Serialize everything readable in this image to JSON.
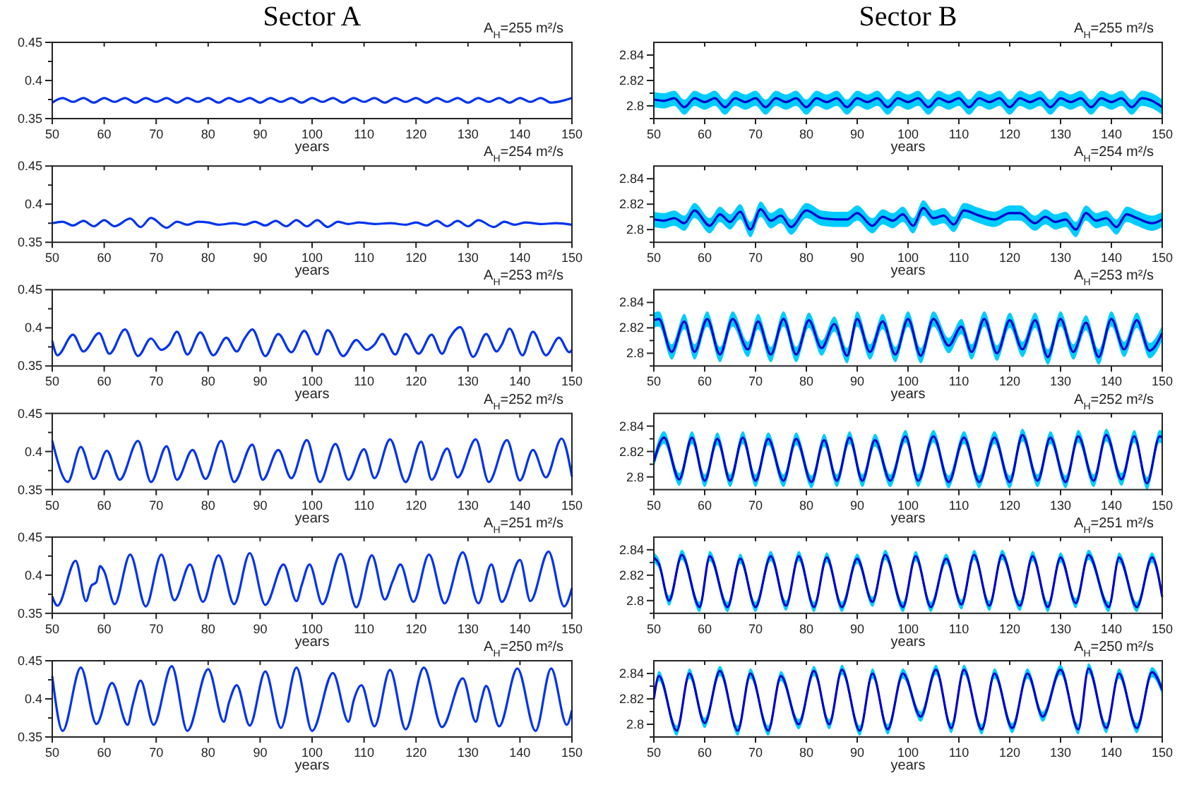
{
  "chart_data": [
    {
      "type": "line",
      "title": "Sector A",
      "xlabel": "years",
      "annotations": [
        "A$_{H}$=255 m²/s"
      ],
      "xlim": [
        50,
        150
      ],
      "xticks": [
        50,
        60,
        70,
        80,
        90,
        100,
        110,
        120,
        130,
        140,
        150
      ],
      "ylim": [
        0.35,
        0.45
      ],
      "yticks": [
        0.35,
        {
          "value": 0.375,
          "label": null
        },
        0.4,
        {
          "value": 0.425,
          "label": null
        },
        0.45
      ],
      "series": [
        {
          "color": "#0033ee",
          "x": [
            50,
            52,
            54,
            56,
            58,
            60,
            62,
            64,
            66,
            68,
            70,
            72,
            74,
            76,
            78,
            80,
            82,
            84,
            86,
            88,
            90,
            92,
            94,
            96,
            98,
            100,
            102,
            104,
            106,
            108,
            110,
            112,
            114,
            116,
            118,
            120,
            122,
            124,
            126,
            128,
            130,
            132,
            134,
            136,
            138,
            140,
            142,
            144,
            146,
            148,
            150
          ],
          "values": [
            0.371,
            0.377,
            0.372,
            0.377,
            0.371,
            0.377,
            0.372,
            0.377,
            0.371,
            0.377,
            0.372,
            0.377,
            0.371,
            0.377,
            0.372,
            0.377,
            0.371,
            0.377,
            0.372,
            0.377,
            0.371,
            0.377,
            0.372,
            0.377,
            0.371,
            0.377,
            0.372,
            0.377,
            0.371,
            0.377,
            0.372,
            0.377,
            0.371,
            0.377,
            0.372,
            0.377,
            0.371,
            0.377,
            0.372,
            0.377,
            0.371,
            0.377,
            0.372,
            0.377,
            0.371,
            0.377,
            0.372,
            0.377,
            0.371,
            0.373,
            0.377
          ]
        }
      ]
    },
    {
      "type": "line",
      "title": "Sector B",
      "xlabel": "years",
      "annotations": [
        "A$_{H}$=255 m²/s"
      ],
      "xlim": [
        50,
        150
      ],
      "xticks": [
        50,
        60,
        70,
        80,
        90,
        100,
        110,
        120,
        130,
        140,
        150
      ],
      "ylim": [
        2.79,
        2.85
      ],
      "yticks": [
        {
          "value": 2.79,
          "label": null
        },
        2.8,
        {
          "value": 2.81,
          "label": null
        },
        2.82,
        {
          "value": 2.83,
          "label": null
        },
        2.84
      ],
      "series": [
        {
          "color": "#0000cc",
          "x": [
            50,
            52,
            54,
            56,
            58,
            60,
            62,
            64,
            66,
            68,
            70,
            72,
            74,
            76,
            78,
            80,
            82,
            84,
            86,
            88,
            90,
            92,
            94,
            96,
            98,
            100,
            102,
            104,
            106,
            108,
            110,
            112,
            114,
            116,
            118,
            120,
            122,
            124,
            126,
            128,
            130,
            132,
            134,
            136,
            138,
            140,
            142,
            144,
            146,
            148,
            150
          ],
          "values": [
            2.805,
            2.804,
            2.806,
            2.799,
            2.806,
            2.803,
            2.806,
            2.799,
            2.806,
            2.803,
            2.806,
            2.799,
            2.806,
            2.803,
            2.806,
            2.799,
            2.806,
            2.803,
            2.806,
            2.799,
            2.806,
            2.803,
            2.806,
            2.799,
            2.806,
            2.803,
            2.806,
            2.799,
            2.806,
            2.803,
            2.806,
            2.799,
            2.806,
            2.803,
            2.806,
            2.799,
            2.806,
            2.803,
            2.806,
            2.799,
            2.806,
            2.803,
            2.806,
            2.799,
            2.806,
            2.803,
            2.806,
            2.799,
            2.806,
            2.804,
            2.799
          ],
          "lower": [
            2.799,
            2.798,
            2.8,
            2.793,
            2.8,
            2.797,
            2.8,
            2.793,
            2.8,
            2.797,
            2.8,
            2.793,
            2.8,
            2.797,
            2.8,
            2.793,
            2.8,
            2.797,
            2.8,
            2.793,
            2.8,
            2.797,
            2.8,
            2.793,
            2.8,
            2.797,
            2.8,
            2.793,
            2.8,
            2.797,
            2.8,
            2.793,
            2.8,
            2.797,
            2.8,
            2.793,
            2.8,
            2.797,
            2.8,
            2.793,
            2.8,
            2.797,
            2.8,
            2.793,
            2.8,
            2.797,
            2.8,
            2.793,
            2.8,
            2.798,
            2.793
          ],
          "upper": [
            2.811,
            2.81,
            2.812,
            2.805,
            2.812,
            2.809,
            2.812,
            2.805,
            2.812,
            2.809,
            2.812,
            2.805,
            2.812,
            2.809,
            2.812,
            2.805,
            2.812,
            2.809,
            2.812,
            2.805,
            2.812,
            2.809,
            2.812,
            2.805,
            2.812,
            2.809,
            2.812,
            2.805,
            2.812,
            2.809,
            2.812,
            2.805,
            2.812,
            2.809,
            2.812,
            2.805,
            2.812,
            2.809,
            2.812,
            2.805,
            2.812,
            2.809,
            2.812,
            2.805,
            2.812,
            2.809,
            2.812,
            2.805,
            2.812,
            2.81,
            2.805
          ]
        }
      ]
    },
    {
      "type": "line",
      "xlabel": "years",
      "annotations": [
        "A$_{H}$=254 m²/s"
      ],
      "xlim": [
        50,
        150
      ],
      "xticks": [
        50,
        60,
        70,
        80,
        90,
        100,
        110,
        120,
        130,
        140,
        150
      ],
      "ylim": [
        0.35,
        0.45
      ],
      "yticks": [
        0.35,
        {
          "value": 0.375,
          "label": null
        },
        0.4,
        {
          "value": 0.425,
          "label": null
        },
        0.45
      ],
      "series": [
        {
          "color": "#0033ee",
          "x": [
            50,
            52,
            54,
            56,
            58,
            60,
            62,
            65,
            67,
            69,
            72,
            74,
            76,
            78,
            80,
            82,
            85,
            87,
            89,
            91,
            93,
            95,
            97,
            99,
            101,
            103,
            105,
            107,
            109,
            112,
            115,
            118,
            120,
            122,
            124,
            126,
            128,
            130,
            132,
            135,
            137,
            139,
            141,
            144,
            147,
            150
          ],
          "values": [
            0.375,
            0.377,
            0.372,
            0.378,
            0.371,
            0.379,
            0.371,
            0.381,
            0.37,
            0.382,
            0.369,
            0.377,
            0.373,
            0.377,
            0.376,
            0.373,
            0.375,
            0.373,
            0.377,
            0.372,
            0.378,
            0.371,
            0.379,
            0.371,
            0.379,
            0.37,
            0.377,
            0.374,
            0.376,
            0.374,
            0.375,
            0.373,
            0.376,
            0.372,
            0.378,
            0.371,
            0.378,
            0.371,
            0.379,
            0.37,
            0.377,
            0.373,
            0.376,
            0.374,
            0.375,
            0.373
          ]
        }
      ]
    },
    {
      "type": "line",
      "xlabel": "years",
      "annotations": [
        "A$_{H}$=254 m²/s"
      ],
      "xlim": [
        50,
        150
      ],
      "xticks": [
        50,
        60,
        70,
        80,
        90,
        100,
        110,
        120,
        130,
        140,
        150
      ],
      "ylim": [
        2.79,
        2.85
      ],
      "yticks": [
        {
          "value": 2.79,
          "label": null
        },
        2.8,
        {
          "value": 2.81,
          "label": null
        },
        2.82,
        {
          "value": 2.83,
          "label": null
        },
        2.84
      ],
      "series": [
        {
          "color": "#0000cc",
          "x": [
            50,
            52,
            54,
            56,
            58,
            61,
            63,
            65,
            67,
            69,
            71,
            73,
            75,
            77,
            80,
            83,
            86,
            88,
            90,
            93,
            95,
            97,
            99,
            101,
            103,
            105,
            107,
            109,
            111,
            114,
            117,
            120,
            122,
            125,
            127,
            129,
            131,
            133,
            135,
            137,
            139,
            141,
            143,
            145,
            148,
            150
          ],
          "values": [
            2.808,
            2.807,
            2.809,
            2.805,
            2.815,
            2.803,
            2.812,
            2.806,
            2.814,
            2.8,
            2.816,
            2.807,
            2.811,
            2.802,
            2.815,
            2.809,
            2.808,
            2.808,
            2.813,
            2.803,
            2.81,
            2.807,
            2.812,
            2.803,
            2.817,
            2.809,
            2.811,
            2.804,
            2.815,
            2.811,
            2.808,
            2.813,
            2.813,
            2.805,
            2.81,
            2.806,
            2.808,
            2.8,
            2.813,
            2.807,
            2.809,
            2.802,
            2.812,
            2.809,
            2.805,
            2.808
          ],
          "lower": [
            2.802,
            2.801,
            2.803,
            2.799,
            2.809,
            2.797,
            2.806,
            2.8,
            2.808,
            2.794,
            2.81,
            2.801,
            2.805,
            2.796,
            2.809,
            2.803,
            2.802,
            2.802,
            2.807,
            2.797,
            2.804,
            2.801,
            2.806,
            2.797,
            2.811,
            2.803,
            2.805,
            2.798,
            2.809,
            2.805,
            2.802,
            2.807,
            2.807,
            2.799,
            2.804,
            2.8,
            2.802,
            2.794,
            2.807,
            2.801,
            2.803,
            2.796,
            2.806,
            2.803,
            2.799,
            2.802
          ],
          "upper": [
            2.814,
            2.813,
            2.815,
            2.811,
            2.821,
            2.809,
            2.818,
            2.812,
            2.82,
            2.806,
            2.822,
            2.813,
            2.817,
            2.808,
            2.821,
            2.815,
            2.814,
            2.814,
            2.819,
            2.809,
            2.816,
            2.813,
            2.818,
            2.809,
            2.823,
            2.815,
            2.817,
            2.81,
            2.821,
            2.817,
            2.814,
            2.819,
            2.819,
            2.811,
            2.816,
            2.812,
            2.814,
            2.806,
            2.819,
            2.813,
            2.815,
            2.808,
            2.818,
            2.815,
            2.811,
            2.814
          ]
        }
      ]
    },
    {
      "type": "line",
      "xlabel": "years",
      "annotations": [
        "A$_{H}$=253 m²/s"
      ],
      "xlim": [
        50,
        150
      ],
      "xticks": [
        50,
        60,
        70,
        80,
        90,
        100,
        110,
        120,
        130,
        140,
        150
      ],
      "ylim": [
        0.35,
        0.45
      ],
      "yticks": [
        0.35,
        {
          "value": 0.375,
          "label": null
        },
        0.4,
        {
          "value": 0.425,
          "label": null
        },
        0.45
      ],
      "series": [
        {
          "color": "#0033ee",
          "x": [
            50,
            51,
            54,
            56,
            59,
            61,
            64,
            66.5,
            69,
            71,
            72.5,
            74,
            76,
            78.5,
            81,
            83.5,
            85.5,
            87,
            88.5,
            91,
            93.5,
            96,
            98.5,
            101,
            103,
            106,
            108.5,
            110.5,
            112,
            113.5,
            116,
            118,
            120.5,
            123,
            125,
            126.5,
            128.5,
            131,
            133.5,
            135.5,
            136.5,
            138,
            140.5,
            142.5,
            145,
            147.5,
            149.5,
            150
          ],
          "values": [
            0.383,
            0.364,
            0.391,
            0.369,
            0.393,
            0.366,
            0.398,
            0.363,
            0.386,
            0.371,
            0.378,
            0.395,
            0.365,
            0.394,
            0.364,
            0.387,
            0.369,
            0.386,
            0.398,
            0.363,
            0.392,
            0.368,
            0.396,
            0.365,
            0.397,
            0.363,
            0.384,
            0.371,
            0.378,
            0.392,
            0.365,
            0.392,
            0.366,
            0.391,
            0.366,
            0.387,
            0.401,
            0.362,
            0.392,
            0.369,
            0.378,
            0.399,
            0.364,
            0.395,
            0.364,
            0.387,
            0.368,
            0.371
          ]
        }
      ]
    },
    {
      "type": "line",
      "xlabel": "years",
      "annotations": [
        "A$_{H}$=253 m²/s"
      ],
      "xlim": [
        50,
        150
      ],
      "xticks": [
        50,
        60,
        70,
        80,
        90,
        100,
        110,
        120,
        130,
        140,
        150
      ],
      "ylim": [
        2.79,
        2.85
      ],
      "yticks": [
        {
          "value": 2.79,
          "label": null
        },
        2.8,
        {
          "value": 2.81,
          "label": null
        },
        2.82,
        {
          "value": 2.83,
          "label": null
        },
        2.84
      ],
      "series": [
        {
          "color": "#0000cc",
          "x": [
            50,
            51,
            53.5,
            56,
            58,
            60.5,
            63,
            65.5,
            68.5,
            70.5,
            73,
            75.5,
            78,
            80.5,
            83,
            85.5,
            88,
            90,
            92.5,
            95,
            97.5,
            100,
            102.5,
            105,
            108,
            110.5,
            112.5,
            115,
            117.5,
            120,
            122.5,
            125,
            127.5,
            130,
            132.5,
            135,
            137.5,
            140,
            142.5,
            145,
            147.5,
            150
          ],
          "values": [
            2.826,
            2.827,
            2.801,
            2.825,
            2.801,
            2.827,
            2.799,
            2.827,
            2.803,
            2.825,
            2.799,
            2.827,
            2.799,
            2.826,
            2.804,
            2.823,
            2.798,
            2.827,
            2.801,
            2.825,
            2.799,
            2.827,
            2.798,
            2.827,
            2.806,
            2.821,
            2.801,
            2.827,
            2.8,
            2.826,
            2.803,
            2.826,
            2.797,
            2.827,
            2.801,
            2.824,
            2.797,
            2.827,
            2.803,
            2.826,
            2.802,
            2.816
          ],
          "lower": [
            2.82,
            2.821,
            2.795,
            2.819,
            2.795,
            2.821,
            2.793,
            2.821,
            2.797,
            2.819,
            2.793,
            2.821,
            2.793,
            2.82,
            2.798,
            2.817,
            2.792,
            2.821,
            2.795,
            2.819,
            2.793,
            2.821,
            2.792,
            2.821,
            2.8,
            2.815,
            2.795,
            2.821,
            2.794,
            2.82,
            2.797,
            2.82,
            2.791,
            2.821,
            2.795,
            2.818,
            2.791,
            2.821,
            2.797,
            2.82,
            2.796,
            2.81
          ],
          "upper": [
            2.832,
            2.833,
            2.807,
            2.831,
            2.807,
            2.833,
            2.805,
            2.833,
            2.809,
            2.831,
            2.805,
            2.833,
            2.805,
            2.832,
            2.81,
            2.829,
            2.804,
            2.833,
            2.807,
            2.831,
            2.805,
            2.833,
            2.804,
            2.833,
            2.812,
            2.827,
            2.807,
            2.833,
            2.806,
            2.832,
            2.809,
            2.832,
            2.803,
            2.833,
            2.807,
            2.83,
            2.803,
            2.833,
            2.809,
            2.832,
            2.808,
            2.822
          ]
        }
      ]
    },
    {
      "type": "line",
      "xlabel": "years",
      "annotations": [
        "A$_{H}$=252 m²/s"
      ],
      "xlim": [
        50,
        150
      ],
      "xticks": [
        50,
        60,
        70,
        80,
        90,
        100,
        110,
        120,
        130,
        140,
        150
      ],
      "ylim": [
        0.35,
        0.45
      ],
      "yticks": [
        0.35,
        {
          "value": 0.375,
          "label": null
        },
        0.4,
        {
          "value": 0.425,
          "label": null
        },
        0.45
      ],
      "series": [
        {
          "color": "#0033ee",
          "x": [
            50,
            53,
            55.5,
            58,
            60.5,
            63,
            66.5,
            69,
            72,
            74,
            77,
            79.5,
            82.5,
            85,
            88.5,
            90.5,
            93.5,
            96,
            99,
            101.5,
            104.5,
            107,
            110,
            112,
            115,
            118,
            121,
            123,
            126,
            128,
            131.5,
            134,
            137.5,
            140,
            142.5,
            145,
            148,
            150
          ],
          "values": [
            0.414,
            0.36,
            0.406,
            0.364,
            0.401,
            0.363,
            0.414,
            0.36,
            0.407,
            0.363,
            0.402,
            0.364,
            0.414,
            0.36,
            0.409,
            0.363,
            0.402,
            0.365,
            0.415,
            0.36,
            0.41,
            0.363,
            0.403,
            0.365,
            0.416,
            0.36,
            0.413,
            0.363,
            0.404,
            0.366,
            0.416,
            0.36,
            0.415,
            0.362,
            0.402,
            0.366,
            0.417,
            0.367
          ]
        }
      ]
    },
    {
      "type": "line",
      "xlabel": "years",
      "annotations": [
        "A$_{H}$=252 m²/s"
      ],
      "xlim": [
        50,
        150
      ],
      "xticks": [
        50,
        60,
        70,
        80,
        90,
        100,
        110,
        120,
        130,
        140,
        150
      ],
      "ylim": [
        2.79,
        2.85
      ],
      "yticks": [
        {
          "value": 2.79,
          "label": null
        },
        2.8,
        {
          "value": 2.81,
          "label": null
        },
        2.82,
        {
          "value": 2.83,
          "label": null
        },
        2.84
      ],
      "series": [
        {
          "color": "#0000cc",
          "x": [
            50,
            52,
            55,
            57.5,
            60,
            62.5,
            65,
            67.5,
            70,
            72.5,
            75.5,
            78,
            81,
            83.5,
            86,
            88.5,
            91,
            93.5,
            96.5,
            99.5,
            102,
            105,
            108,
            111,
            114,
            117,
            120,
            122.5,
            125.5,
            128,
            131,
            133.5,
            136.5,
            139,
            142,
            144.5,
            147,
            149.5,
            150
          ],
          "values": [
            2.812,
            2.831,
            2.798,
            2.831,
            2.797,
            2.83,
            2.797,
            2.831,
            2.797,
            2.83,
            2.797,
            2.83,
            2.796,
            2.829,
            2.797,
            2.831,
            2.797,
            2.829,
            2.797,
            2.832,
            2.797,
            2.832,
            2.796,
            2.831,
            2.796,
            2.831,
            2.796,
            2.833,
            2.797,
            2.831,
            2.796,
            2.832,
            2.797,
            2.833,
            2.798,
            2.832,
            2.795,
            2.832,
            2.831
          ],
          "lower": [
            2.807,
            2.826,
            2.793,
            2.826,
            2.792,
            2.825,
            2.792,
            2.826,
            2.792,
            2.825,
            2.792,
            2.825,
            2.791,
            2.824,
            2.792,
            2.826,
            2.792,
            2.824,
            2.792,
            2.827,
            2.792,
            2.827,
            2.791,
            2.826,
            2.791,
            2.826,
            2.791,
            2.828,
            2.792,
            2.826,
            2.791,
            2.827,
            2.792,
            2.828,
            2.793,
            2.827,
            2.79,
            2.827,
            2.826
          ],
          "upper": [
            2.817,
            2.836,
            2.803,
            2.836,
            2.802,
            2.835,
            2.802,
            2.836,
            2.802,
            2.835,
            2.802,
            2.835,
            2.801,
            2.834,
            2.802,
            2.836,
            2.802,
            2.834,
            2.802,
            2.837,
            2.802,
            2.837,
            2.801,
            2.836,
            2.801,
            2.836,
            2.801,
            2.838,
            2.802,
            2.836,
            2.801,
            2.837,
            2.802,
            2.838,
            2.803,
            2.837,
            2.8,
            2.837,
            2.836
          ]
        }
      ]
    },
    {
      "type": "line",
      "xlabel": "years",
      "annotations": [
        "A$_{H}$=251 m²/s"
      ],
      "xlim": [
        50,
        150
      ],
      "xticks": [
        50,
        60,
        70,
        80,
        90,
        100,
        110,
        120,
        130,
        140,
        150
      ],
      "ylim": [
        0.35,
        0.45
      ],
      "yticks": [
        0.35,
        {
          "value": 0.375,
          "label": null
        },
        0.4,
        {
          "value": 0.425,
          "label": null
        },
        0.45
      ],
      "series": [
        {
          "color": "#0033ee",
          "x": [
            50,
            51,
            54.5,
            56.5,
            57.5,
            58.5,
            59.2,
            60,
            62,
            65,
            68,
            71,
            73.5,
            76.5,
            79,
            82,
            85,
            88,
            91,
            94.5,
            97,
            98,
            99.5,
            102,
            105.5,
            108.5,
            111.5,
            114,
            115.5,
            117,
            119.5,
            122.5,
            125.5,
            129,
            132,
            134.5,
            136.5,
            140,
            142,
            145.5,
            148.5,
            150
          ],
          "values": [
            0.372,
            0.36,
            0.419,
            0.366,
            0.386,
            0.391,
            0.412,
            0.405,
            0.362,
            0.427,
            0.359,
            0.427,
            0.367,
            0.414,
            0.365,
            0.426,
            0.362,
            0.429,
            0.361,
            0.414,
            0.366,
            0.387,
            0.414,
            0.362,
            0.428,
            0.358,
            0.426,
            0.368,
            0.392,
            0.414,
            0.365,
            0.427,
            0.363,
            0.43,
            0.363,
            0.414,
            0.365,
            0.42,
            0.366,
            0.431,
            0.359,
            0.383
          ]
        }
      ]
    },
    {
      "type": "line",
      "xlabel": "years",
      "annotations": [
        "A$_{H}$=251 m²/s"
      ],
      "xlim": [
        50,
        150
      ],
      "xticks": [
        50,
        60,
        70,
        80,
        90,
        100,
        110,
        120,
        130,
        140,
        150
      ],
      "ylim": [
        2.79,
        2.85
      ],
      "yticks": [
        {
          "value": 2.79,
          "label": null
        },
        2.8,
        {
          "value": 2.81,
          "label": null
        },
        2.82,
        {
          "value": 2.83,
          "label": null
        },
        2.84
      ],
      "series": [
        {
          "color": "#0000cc",
          "x": [
            50,
            51,
            53,
            55.5,
            59,
            61,
            64.5,
            67,
            70,
            73,
            76,
            78.5,
            81.5,
            84,
            87,
            90,
            93,
            95.5,
            99,
            101.5,
            104.5,
            107.5,
            110.5,
            113,
            116,
            118.5,
            122,
            124.5,
            127.5,
            130,
            133,
            135.5,
            139.5,
            141.5,
            145,
            148,
            150
          ],
          "values": [
            2.834,
            2.829,
            2.8,
            2.836,
            2.795,
            2.835,
            2.795,
            2.833,
            2.795,
            2.835,
            2.796,
            2.835,
            2.795,
            2.834,
            2.795,
            2.833,
            2.799,
            2.836,
            2.795,
            2.835,
            2.795,
            2.833,
            2.797,
            2.836,
            2.796,
            2.836,
            2.796,
            2.835,
            2.795,
            2.834,
            2.798,
            2.836,
            2.795,
            2.834,
            2.795,
            2.834,
            2.803
          ],
          "lower": [
            2.83,
            2.825,
            2.796,
            2.832,
            2.791,
            2.831,
            2.791,
            2.829,
            2.791,
            2.831,
            2.792,
            2.831,
            2.791,
            2.83,
            2.791,
            2.829,
            2.795,
            2.832,
            2.791,
            2.831,
            2.791,
            2.829,
            2.793,
            2.832,
            2.792,
            2.832,
            2.792,
            2.831,
            2.791,
            2.83,
            2.794,
            2.832,
            2.791,
            2.83,
            2.791,
            2.83,
            2.799
          ],
          "upper": [
            2.838,
            2.833,
            2.804,
            2.84,
            2.799,
            2.839,
            2.799,
            2.837,
            2.799,
            2.839,
            2.8,
            2.839,
            2.799,
            2.838,
            2.799,
            2.837,
            2.803,
            2.84,
            2.799,
            2.839,
            2.799,
            2.837,
            2.801,
            2.84,
            2.8,
            2.84,
            2.8,
            2.839,
            2.799,
            2.838,
            2.802,
            2.84,
            2.799,
            2.838,
            2.799,
            2.838,
            2.807
          ]
        }
      ]
    },
    {
      "type": "line",
      "xlabel": "years",
      "annotations": [
        "A$_{H}$=250 m²/s"
      ],
      "xlim": [
        50,
        150
      ],
      "xticks": [
        50,
        60,
        70,
        80,
        90,
        100,
        110,
        120,
        130,
        140,
        150
      ],
      "ylim": [
        0.35,
        0.45
      ],
      "yticks": [
        0.35,
        {
          "value": 0.375,
          "label": null
        },
        0.4,
        {
          "value": 0.425,
          "label": null
        },
        0.45
      ],
      "series": [
        {
          "color": "#0033ee",
          "x": [
            50,
            52,
            55.5,
            58.5,
            61.5,
            64.5,
            65.5,
            67,
            69.5,
            73,
            76,
            80,
            83,
            84,
            85.5,
            88,
            91,
            94,
            97,
            100,
            104,
            107,
            108,
            109.5,
            112,
            115,
            118,
            121.5,
            125,
            129,
            131.5,
            132.5,
            133.5,
            136,
            139.5,
            143,
            146,
            149,
            150
          ],
          "values": [
            0.43,
            0.358,
            0.441,
            0.367,
            0.421,
            0.366,
            0.393,
            0.424,
            0.366,
            0.443,
            0.358,
            0.439,
            0.37,
            0.395,
            0.418,
            0.365,
            0.436,
            0.362,
            0.441,
            0.358,
            0.434,
            0.37,
            0.398,
            0.418,
            0.364,
            0.438,
            0.36,
            0.441,
            0.363,
            0.427,
            0.37,
            0.397,
            0.417,
            0.364,
            0.44,
            0.358,
            0.44,
            0.366,
            0.385
          ]
        }
      ]
    },
    {
      "type": "line",
      "xlabel": "years",
      "annotations": [
        "A$_{H}$=250 m²/s"
      ],
      "xlim": [
        50,
        150
      ],
      "xticks": [
        50,
        60,
        70,
        80,
        90,
        100,
        110,
        120,
        130,
        140,
        150
      ],
      "ylim": [
        2.79,
        2.85
      ],
      "yticks": [
        {
          "value": 2.79,
          "label": null
        },
        2.8,
        {
          "value": 2.81,
          "label": null
        },
        2.82,
        {
          "value": 2.83,
          "label": null
        },
        2.84
      ],
      "series": [
        {
          "color": "#0000cc",
          "x": [
            50,
            51,
            54.5,
            57,
            60,
            63,
            66.5,
            69,
            72.5,
            75,
            78.5,
            81.5,
            84.5,
            87,
            90.5,
            93,
            96,
            99,
            102.5,
            105.5,
            108.5,
            111,
            114.5,
            117,
            120.5,
            123.5,
            126.5,
            130,
            133.5,
            135.5,
            139,
            141.5,
            145,
            148,
            150
          ],
          "values": [
            2.82,
            2.838,
            2.795,
            2.84,
            2.801,
            2.842,
            2.795,
            2.84,
            2.795,
            2.838,
            2.8,
            2.842,
            2.8,
            2.843,
            2.795,
            2.84,
            2.796,
            2.84,
            2.806,
            2.843,
            2.797,
            2.843,
            2.796,
            2.84,
            2.797,
            2.84,
            2.806,
            2.843,
            2.796,
            2.844,
            2.797,
            2.84,
            2.797,
            2.841,
            2.827
          ],
          "lower": [
            2.816,
            2.834,
            2.791,
            2.836,
            2.797,
            2.838,
            2.791,
            2.836,
            2.791,
            2.834,
            2.796,
            2.838,
            2.796,
            2.839,
            2.791,
            2.836,
            2.792,
            2.836,
            2.802,
            2.839,
            2.793,
            2.839,
            2.792,
            2.836,
            2.793,
            2.836,
            2.802,
            2.839,
            2.792,
            2.84,
            2.793,
            2.836,
            2.793,
            2.837,
            2.823
          ],
          "upper": [
            2.824,
            2.842,
            2.799,
            2.844,
            2.805,
            2.846,
            2.799,
            2.844,
            2.799,
            2.842,
            2.804,
            2.846,
            2.804,
            2.847,
            2.799,
            2.844,
            2.8,
            2.844,
            2.81,
            2.847,
            2.801,
            2.847,
            2.8,
            2.844,
            2.801,
            2.844,
            2.81,
            2.847,
            2.8,
            2.848,
            2.801,
            2.844,
            2.801,
            2.845,
            2.831
          ]
        }
      ]
    }
  ]
}
